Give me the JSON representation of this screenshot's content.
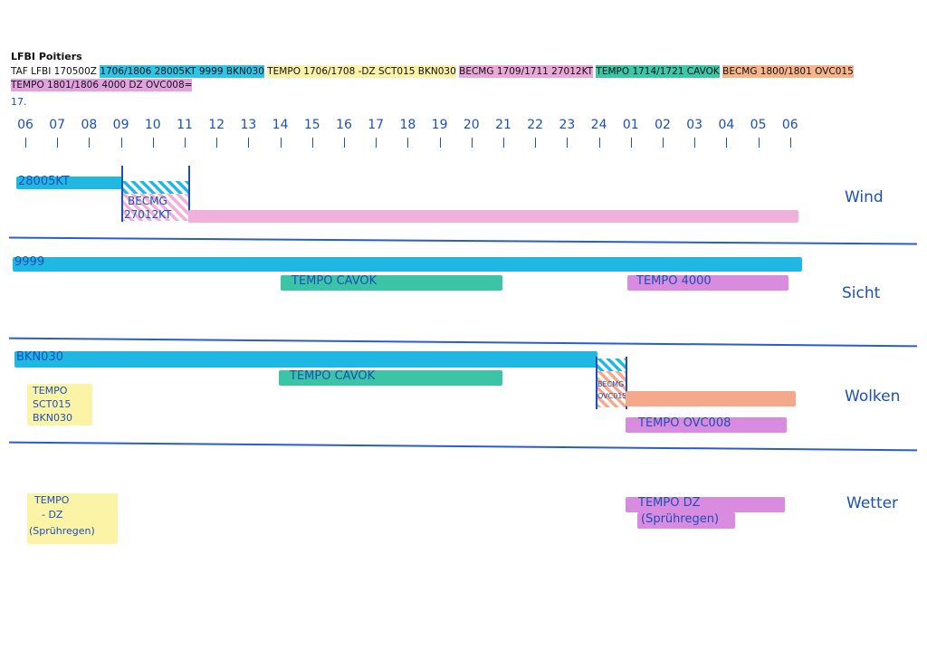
{
  "station_title": "LFBI Poitiers",
  "taf_segments": [
    {
      "text": "TAF LFBI 170500Z ",
      "color": ""
    },
    {
      "text": "1706/1806 28005KT 9999 BKN030",
      "color": "#2ec4e6"
    },
    {
      "text": " ",
      "color": ""
    },
    {
      "text": "TEMPO 1706/1708 -DZ SCT015 BKN030",
      "color": "#fbf1a8"
    },
    {
      "text": " ",
      "color": ""
    },
    {
      "text": "BECMG 1709/1711 27012KT",
      "color": "#e9a8d8"
    },
    {
      "text": " ",
      "color": ""
    },
    {
      "text": "TEMPO 1714/1721 CAVOK",
      "color": "#3cc7a9"
    },
    {
      "text": " ",
      "color": ""
    },
    {
      "text": "BECMG 1800/1801 OVC015",
      "color": "#f7b58c"
    },
    {
      "text": " ",
      "color": ""
    },
    {
      "text": "TEMPO 1801/1806 4000 DZ OVC008=",
      "color": "#e2a2df"
    }
  ],
  "day_label": "17.",
  "hours": [
    "06",
    "07",
    "08",
    "09",
    "10",
    "11",
    "12",
    "13",
    "14",
    "15",
    "16",
    "17",
    "18",
    "19",
    "20",
    "21",
    "22",
    "23",
    "24",
    "01",
    "02",
    "03",
    "04",
    "05",
    "06"
  ],
  "colors": {
    "cyan": "#1fb8e3",
    "pink": "#efb0d9",
    "teal": "#3cc4a6",
    "orange": "#f5a88a",
    "violet": "#d98be0",
    "yellow": "#fbf3a6",
    "ink": "#1d4fb8"
  },
  "rows": {
    "wind": {
      "name": "Wind",
      "base_label": "28005KT",
      "becmg_label_1": "BECMG",
      "becmg_label_2": "27012KT"
    },
    "sicht": {
      "name": "Sicht",
      "base_label": "9999",
      "tempo_cavok": "TEMPO   CAVOK",
      "tempo_4000": "TEMPO   4000"
    },
    "wolken": {
      "name": "Wolken",
      "base_label": "BKN030",
      "tempo_cavok": "TEMPO   CAVOK",
      "tempo_note_1": "TEMPO",
      "tempo_note_2": "SCT015",
      "tempo_note_3": "BKN030",
      "becmg_1": "BECMG",
      "becmg_2": "OVC015",
      "tempo_ovc": "TEMPO OVC008"
    },
    "wetter": {
      "name": "Wetter",
      "tempo_note_1": "TEMPO",
      "tempo_note_2": "- DZ",
      "tempo_note_3": "(Sprühregen)",
      "tempo_dz_1": "TEMPO   DZ",
      "tempo_dz_2": "(Sprühregen)"
    }
  }
}
